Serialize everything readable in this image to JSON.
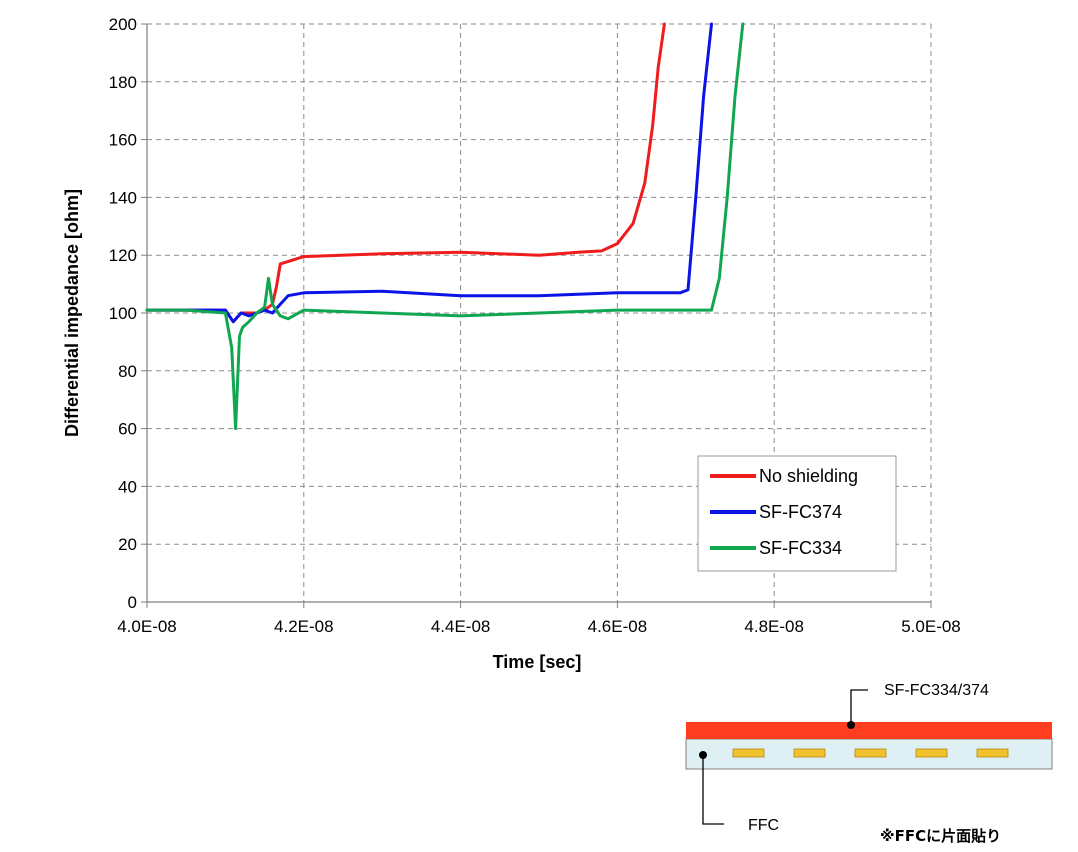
{
  "chart_data": {
    "type": "line",
    "xlabel": "Time [sec]",
    "ylabel": "Differential impedance [ohm]",
    "xlim": [
      4e-08,
      5e-08
    ],
    "ylim": [
      0,
      200
    ],
    "x_ticks": [
      "4.0E-08",
      "4.2E-08",
      "4.4E-08",
      "4.6E-08",
      "4.8E-08",
      "5.0E-08"
    ],
    "y_ticks": [
      "0",
      "20",
      "40",
      "60",
      "80",
      "100",
      "120",
      "140",
      "160",
      "180",
      "200"
    ],
    "grid": true,
    "legend_position": "bottom-right",
    "series": [
      {
        "name": "No shielding",
        "color": "#ee1c1c",
        "x": [
          4e-08,
          4.05e-08,
          4.1e-08,
          4.11e-08,
          4.12e-08,
          4.13e-08,
          4.14e-08,
          4.15e-08,
          4.16e-08,
          4.165e-08,
          4.17e-08,
          4.2e-08,
          4.3e-08,
          4.4e-08,
          4.5e-08,
          4.55e-08,
          4.58e-08,
          4.6e-08,
          4.62e-08,
          4.635e-08,
          4.645e-08,
          4.652e-08,
          4.66e-08
        ],
        "y": [
          101,
          101,
          101,
          97,
          100,
          100,
          100,
          101,
          103,
          109,
          117,
          119.5,
          120.5,
          121,
          120,
          121,
          121.5,
          124,
          131,
          145,
          165,
          185,
          200
        ]
      },
      {
        "name": "SF-FC374",
        "color": "#0a14e6",
        "x": [
          4e-08,
          4.05e-08,
          4.1e-08,
          4.11e-08,
          4.12e-08,
          4.13e-08,
          4.14e-08,
          4.15e-08,
          4.16e-08,
          4.17e-08,
          4.18e-08,
          4.2e-08,
          4.3e-08,
          4.4e-08,
          4.5e-08,
          4.6e-08,
          4.68e-08,
          4.69e-08,
          4.7e-08,
          4.71e-08,
          4.72e-08
        ],
        "y": [
          101,
          101,
          101,
          97,
          100,
          99,
          100,
          101,
          100,
          103,
          106,
          107,
          107.5,
          106,
          106,
          107,
          107,
          108,
          140,
          175,
          200
        ]
      },
      {
        "name": "SF-FC334",
        "color": "#11a650",
        "x": [
          4e-08,
          4.05e-08,
          4.1e-08,
          4.108e-08,
          4.113e-08,
          4.118e-08,
          4.122e-08,
          4.13e-08,
          4.14e-08,
          4.15e-08,
          4.155e-08,
          4.16e-08,
          4.17e-08,
          4.18e-08,
          4.2e-08,
          4.3e-08,
          4.4e-08,
          4.5e-08,
          4.6e-08,
          4.7e-08,
          4.72e-08,
          4.73e-08,
          4.74e-08,
          4.75e-08,
          4.76e-08
        ],
        "y": [
          101,
          101,
          100,
          88,
          60,
          92,
          95,
          97,
          100,
          102,
          112,
          103,
          99,
          98,
          101,
          100,
          99,
          100,
          101,
          101,
          101,
          112,
          140,
          175,
          200
        ]
      }
    ]
  },
  "diagram": {
    "shield_label": "SF-FC334/374",
    "ffc_label": "FFC",
    "note": "※FFCに片面貼り",
    "shield_color": "#ff3d1f",
    "ffc_color": "#dff0f5",
    "conductor_color": "#f2c12e",
    "conductor_count": 5
  }
}
